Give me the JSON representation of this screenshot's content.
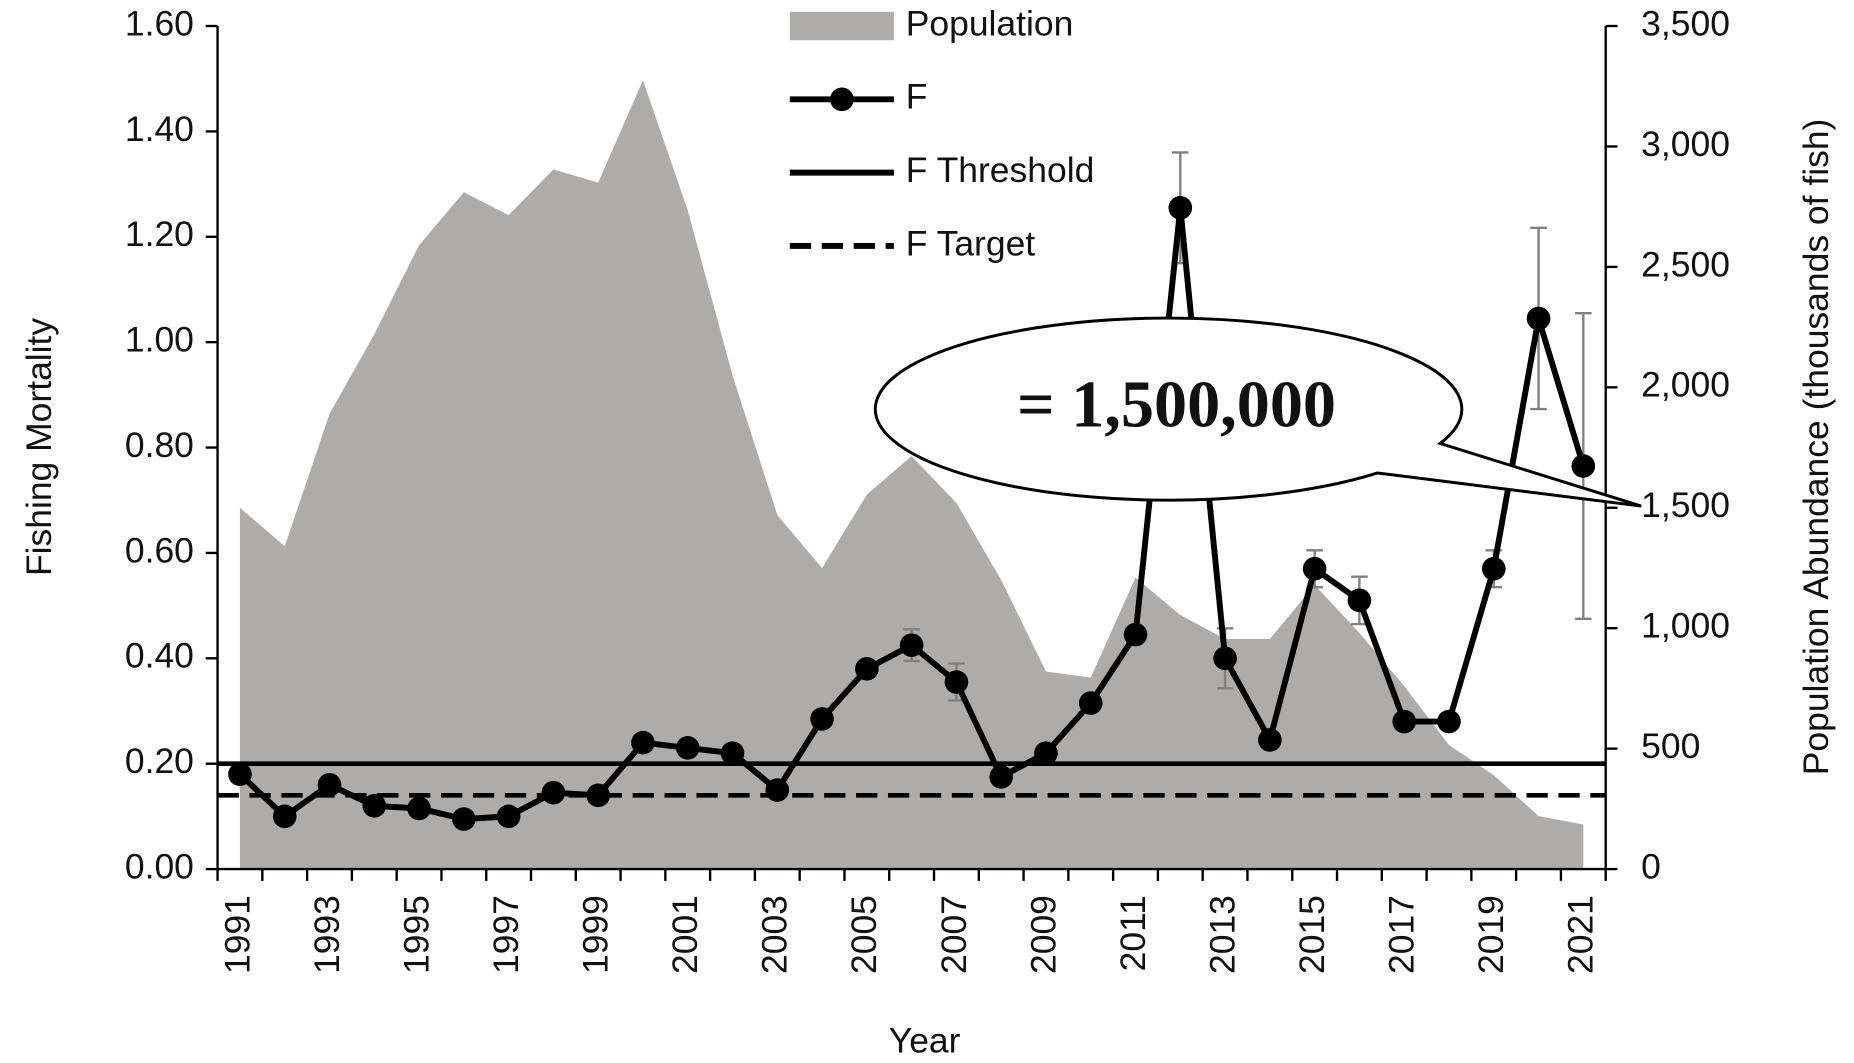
{
  "chart_data": {
    "type": "line",
    "x_label": "Year",
    "y_label": "Fishing Mortality",
    "y2_label": "Population Abundance  (thousands of fish)",
    "categories": [
      "1991",
      null,
      "1993",
      null,
      "1995",
      null,
      "1997",
      null,
      "1999",
      null,
      "2001",
      null,
      "2003",
      null,
      "2005",
      null,
      "2007",
      null,
      "2009",
      null,
      "2011",
      null,
      "2013",
      null,
      "2015",
      null,
      "2017",
      null,
      "2019",
      null,
      "2021"
    ],
    "series": [
      {
        "name": "Population",
        "type": "area",
        "axis": "y2",
        "color": "#aeabab",
        "values": [
          1500,
          1340,
          1890,
          2220,
          2590,
          2810,
          2715,
          2905,
          2850,
          3275,
          2735,
          2050,
          1470,
          1250,
          1555,
          1715,
          1520,
          1200,
          820,
          795,
          1210,
          1055,
          955,
          955,
          1180,
          980,
          760,
          515,
          390,
          220,
          185
        ]
      },
      {
        "name": "F",
        "type": "line",
        "color": "#000000",
        "values": [
          0.18,
          0.1,
          0.16,
          0.12,
          0.115,
          0.095,
          0.1,
          0.145,
          0.14,
          0.24,
          0.23,
          0.22,
          0.15,
          0.285,
          0.38,
          0.425,
          0.355,
          0.175,
          0.22,
          0.315,
          0.445,
          1.255,
          0.4,
          0.245,
          0.57,
          0.51,
          0.28,
          0.28,
          0.57,
          1.045,
          0.765
        ],
        "errors": [
          null,
          null,
          null,
          null,
          null,
          null,
          null,
          null,
          null,
          null,
          null,
          null,
          null,
          null,
          null,
          0.03,
          0.035,
          null,
          null,
          null,
          null,
          0.105,
          0.057,
          null,
          0.035,
          0.045,
          0.015,
          null,
          0.035,
          0.172,
          0.29
        ]
      }
    ],
    "reference_lines": [
      {
        "name": "F Threshold",
        "value": 0.2,
        "color": "#000000",
        "style": "solid"
      },
      {
        "name": "F Target",
        "value": 0.14,
        "color": "#000000",
        "style": "dashed"
      }
    ],
    "annotation": "= 1,500,000",
    "ylim": [
      0,
      1.6
    ],
    "yticks": [
      {
        "value": 0,
        "label": "0.00"
      },
      {
        "value": 0.2,
        "label": "0.20"
      },
      {
        "value": 0.4,
        "label": "0.40"
      },
      {
        "value": 0.6,
        "label": "0.60"
      },
      {
        "value": 0.8,
        "label": "0.80"
      },
      {
        "value": 1.0,
        "label": "1.00"
      },
      {
        "value": 1.2,
        "label": "1.20"
      },
      {
        "value": 1.4,
        "label": "1.40"
      },
      {
        "value": 1.6,
        "label": "1.60"
      }
    ],
    "y2lim": [
      0,
      3500
    ],
    "y2ticks": [
      0,
      500,
      {
        "value": 1000,
        "label": "1,000"
      },
      {
        "value": 1500,
        "label": "1,500"
      },
      {
        "value": 2000,
        "label": "2,000"
      },
      {
        "value": 2500,
        "label": "2,500"
      },
      {
        "value": 3000,
        "label": "3,000"
      },
      {
        "value": 3500,
        "label": "3,500"
      }
    ],
    "legend": "top-center"
  }
}
